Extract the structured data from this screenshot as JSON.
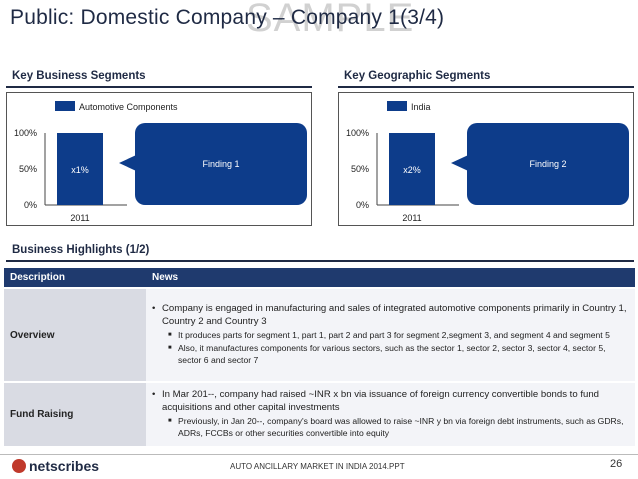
{
  "title": "Public: Domestic Company – Company 1(3/4)",
  "watermark": "SAMPLE",
  "left_panel": {
    "heading": "Key Business Segments",
    "legend": "Automotive Components",
    "bar_label": "x1%",
    "year": "2011",
    "finding": "Finding 1"
  },
  "right_panel": {
    "heading": "Key Geographic Segments",
    "legend": "India",
    "bar_label": "x2%",
    "year": "2011",
    "finding": "Finding 2"
  },
  "axis_ticks": [
    "100%",
    "50%",
    "0%"
  ],
  "highlights_heading": "Business Highlights (1/2)",
  "table": {
    "col_description": "Description",
    "col_news": "News",
    "rows": [
      {
        "description": "Overview",
        "bullet": "Company is engaged in manufacturing and sales of integrated automotive components primarily in Country 1, Country 2 and Country 3",
        "sub": [
          "It produces parts for segment 1, part 1, part 2 and part 3 for segment 2,segment 3, and segment 4 and segment 5",
          "Also, it manufactures components for various sectors, such as the sector 1, sector 2, sector 3, sector 4, sector 5, sector 6 and sector 7"
        ]
      },
      {
        "description": "Fund Raising",
        "bullet": "In Mar 201--, company had raised ~INR x bn via issuance of foreign currency convertible bonds to fund acquisitions and other capital investments",
        "sub": [
          "Previously, in Jan 20--, company's board was allowed to raise ~INR y bn via foreign debt instruments, such as GDRs, ADRs, FCCBs or other securities convertible into equity"
        ]
      }
    ]
  },
  "footer": {
    "logo": "netscribes",
    "text": "AUTO ANCILLARY MARKET IN INDIA 2014.PPT",
    "page": "26"
  },
  "colors": {
    "navy": "#1f3a6e",
    "bar": "#0d3c8a",
    "desc_bg": "#d9dbe3"
  },
  "chart_data": [
    {
      "type": "bar",
      "categories": [
        "2011"
      ],
      "series": [
        {
          "name": "Automotive Components",
          "values": [
            100
          ],
          "label": "x1%"
        }
      ],
      "ylim": [
        0,
        100
      ],
      "yticks": [
        "0%",
        "50%",
        "100%"
      ]
    },
    {
      "type": "bar",
      "categories": [
        "2011"
      ],
      "series": [
        {
          "name": "India",
          "values": [
            100
          ],
          "label": "x2%"
        }
      ],
      "ylim": [
        0,
        100
      ],
      "yticks": [
        "0%",
        "50%",
        "100%"
      ]
    }
  ]
}
